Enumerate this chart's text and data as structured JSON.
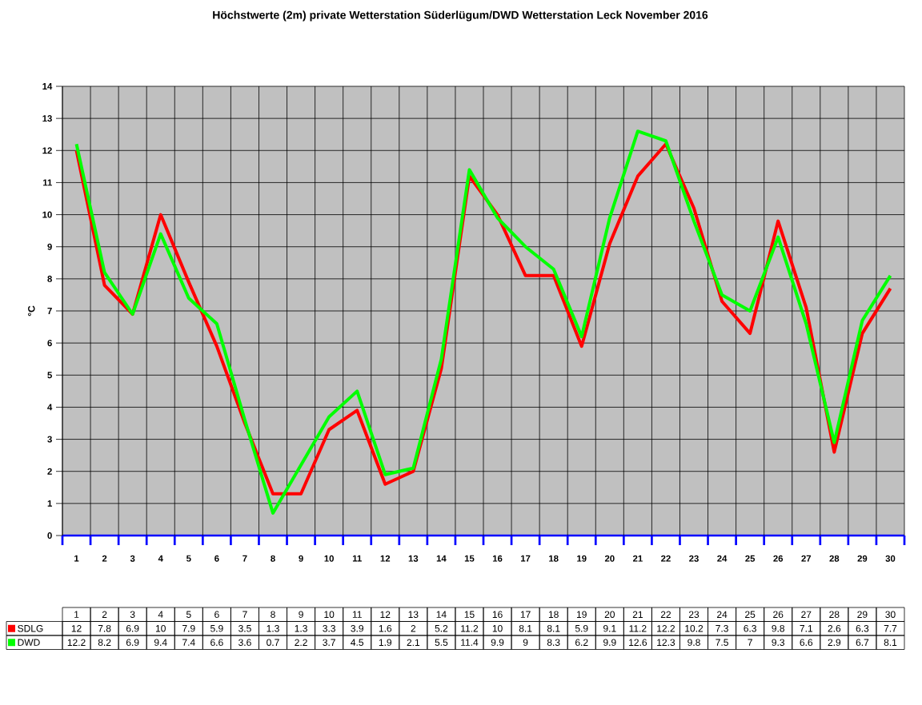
{
  "chart_data": {
    "type": "line",
    "title": "Höchstwerte (2m) private Wetterstation Süderlügum/DWD Wetterstation Leck November 2016",
    "ylabel": "°C",
    "categories": [
      "1",
      "2",
      "3",
      "4",
      "5",
      "6",
      "7",
      "8",
      "9",
      "10",
      "11",
      "12",
      "13",
      "14",
      "15",
      "16",
      "17",
      "18",
      "19",
      "20",
      "21",
      "22",
      "23",
      "24",
      "25",
      "26",
      "27",
      "28",
      "29",
      "30"
    ],
    "series": [
      {
        "name": "SDLG",
        "color": "#ff0000",
        "values": [
          12,
          7.8,
          6.9,
          10,
          7.9,
          5.9,
          3.5,
          1.3,
          1.3,
          3.3,
          3.9,
          1.6,
          2,
          5.2,
          11.2,
          10,
          8.1,
          8.1,
          5.9,
          9.1,
          11.2,
          12.2,
          10.2,
          7.3,
          6.3,
          9.8,
          7.1,
          2.6,
          6.3,
          7.7
        ]
      },
      {
        "name": "DWD",
        "color": "#00ff00",
        "values": [
          12.2,
          8.2,
          6.9,
          9.4,
          7.4,
          6.6,
          3.6,
          0.7,
          2.2,
          3.7,
          4.5,
          1.9,
          2.1,
          5.5,
          11.4,
          9.9,
          9,
          8.3,
          6.2,
          9.9,
          12.6,
          12.3,
          9.8,
          7.5,
          7,
          9.3,
          6.6,
          2.9,
          6.7,
          8.1
        ]
      }
    ],
    "ylim": [
      0,
      14
    ],
    "yticks": [
      0,
      1,
      2,
      3,
      4,
      5,
      6,
      7,
      8,
      9,
      10,
      11,
      12,
      13,
      14
    ],
    "grid": true,
    "legend": "bottom left",
    "data_labels": true,
    "marker": "none",
    "line_style": "solid"
  }
}
